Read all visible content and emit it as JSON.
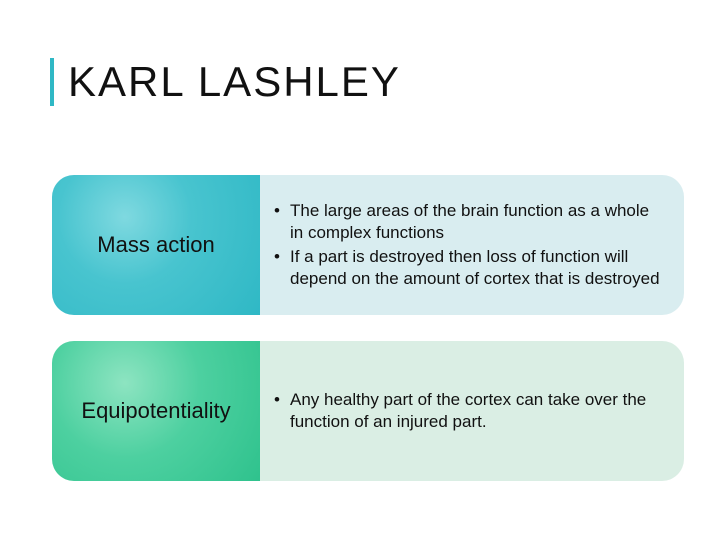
{
  "title": "KARL LASHLEY",
  "colors": {
    "accent_bar": "#2fb8c5",
    "row1_label_bg": "#2fb8c5",
    "row1_body_bg": "#d9edf0",
    "row2_label_bg": "#2fc28d",
    "row2_body_bg": "#daeee4",
    "text": "#111111"
  },
  "rows": [
    {
      "label": "Mass action",
      "bullets": [
        "The large areas of the brain function as a whole in complex functions",
        "If a part is destroyed then loss of function will depend on the amount of cortex that is destroyed"
      ]
    },
    {
      "label": "Equipotentiality",
      "bullets": [
        "Any healthy part of the cortex can take over the function of an injured part."
      ]
    }
  ]
}
